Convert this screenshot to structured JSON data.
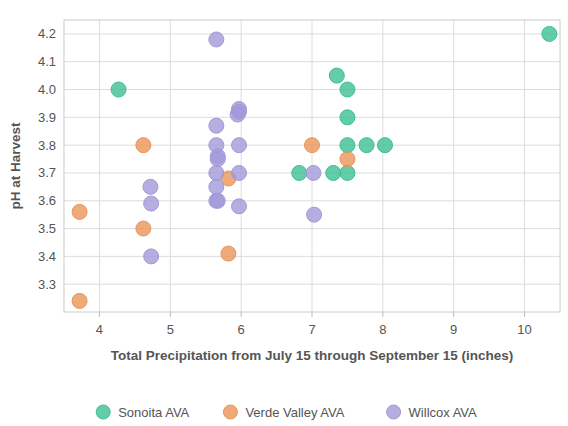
{
  "chart_data": {
    "type": "scatter",
    "x_label": "Total Precipitation from July 15 through September 15 (inches)",
    "y_label": "pH at Harvest",
    "xlim": [
      3.5,
      10.5
    ],
    "ylim": [
      3.2,
      4.25
    ],
    "xticks": [
      4,
      5,
      6,
      7,
      8,
      9,
      10
    ],
    "yticks": [
      3.3,
      3.4,
      3.5,
      3.6,
      3.7,
      3.8,
      3.9,
      {
        "value": 4,
        "label": "4.0"
      },
      4.1,
      4.2
    ],
    "grid": true,
    "legend": "bottom",
    "marker": "circle",
    "series": [
      {
        "name": "Sonoita AVA",
        "color": "#3dbf94",
        "x": [
          4.27,
          10.35,
          7.35,
          7.5,
          7.5,
          7.5,
          7.77,
          8.03,
          6.82,
          7.3,
          7.5
        ],
        "values": [
          4.0,
          4.2,
          4.05,
          4.0,
          3.9,
          3.8,
          3.8,
          3.8,
          3.7,
          3.7,
          3.7
        ]
      },
      {
        "name": "Verde Valley AVA",
        "color": "#ea9558",
        "x": [
          3.72,
          3.72,
          4.62,
          4.62,
          5.82,
          5.82,
          7.0,
          7.5
        ],
        "values": [
          3.56,
          3.24,
          3.8,
          3.5,
          3.68,
          3.41,
          3.8,
          3.75
        ]
      },
      {
        "name": "Willcox AVA",
        "color": "#a29ad8",
        "x": [
          5.65,
          5.65,
          5.65,
          5.67,
          5.67,
          5.65,
          5.65,
          5.65,
          5.67,
          5.97,
          5.97,
          5.95,
          5.97,
          5.97,
          5.97,
          4.72,
          4.73,
          4.73,
          7.02,
          7.03
        ],
        "values": [
          4.18,
          3.87,
          3.8,
          3.76,
          3.75,
          3.7,
          3.65,
          3.6,
          3.6,
          3.93,
          3.92,
          3.91,
          3.8,
          3.7,
          3.58,
          3.65,
          3.59,
          3.4,
          3.7,
          3.55
        ]
      }
    ]
  }
}
